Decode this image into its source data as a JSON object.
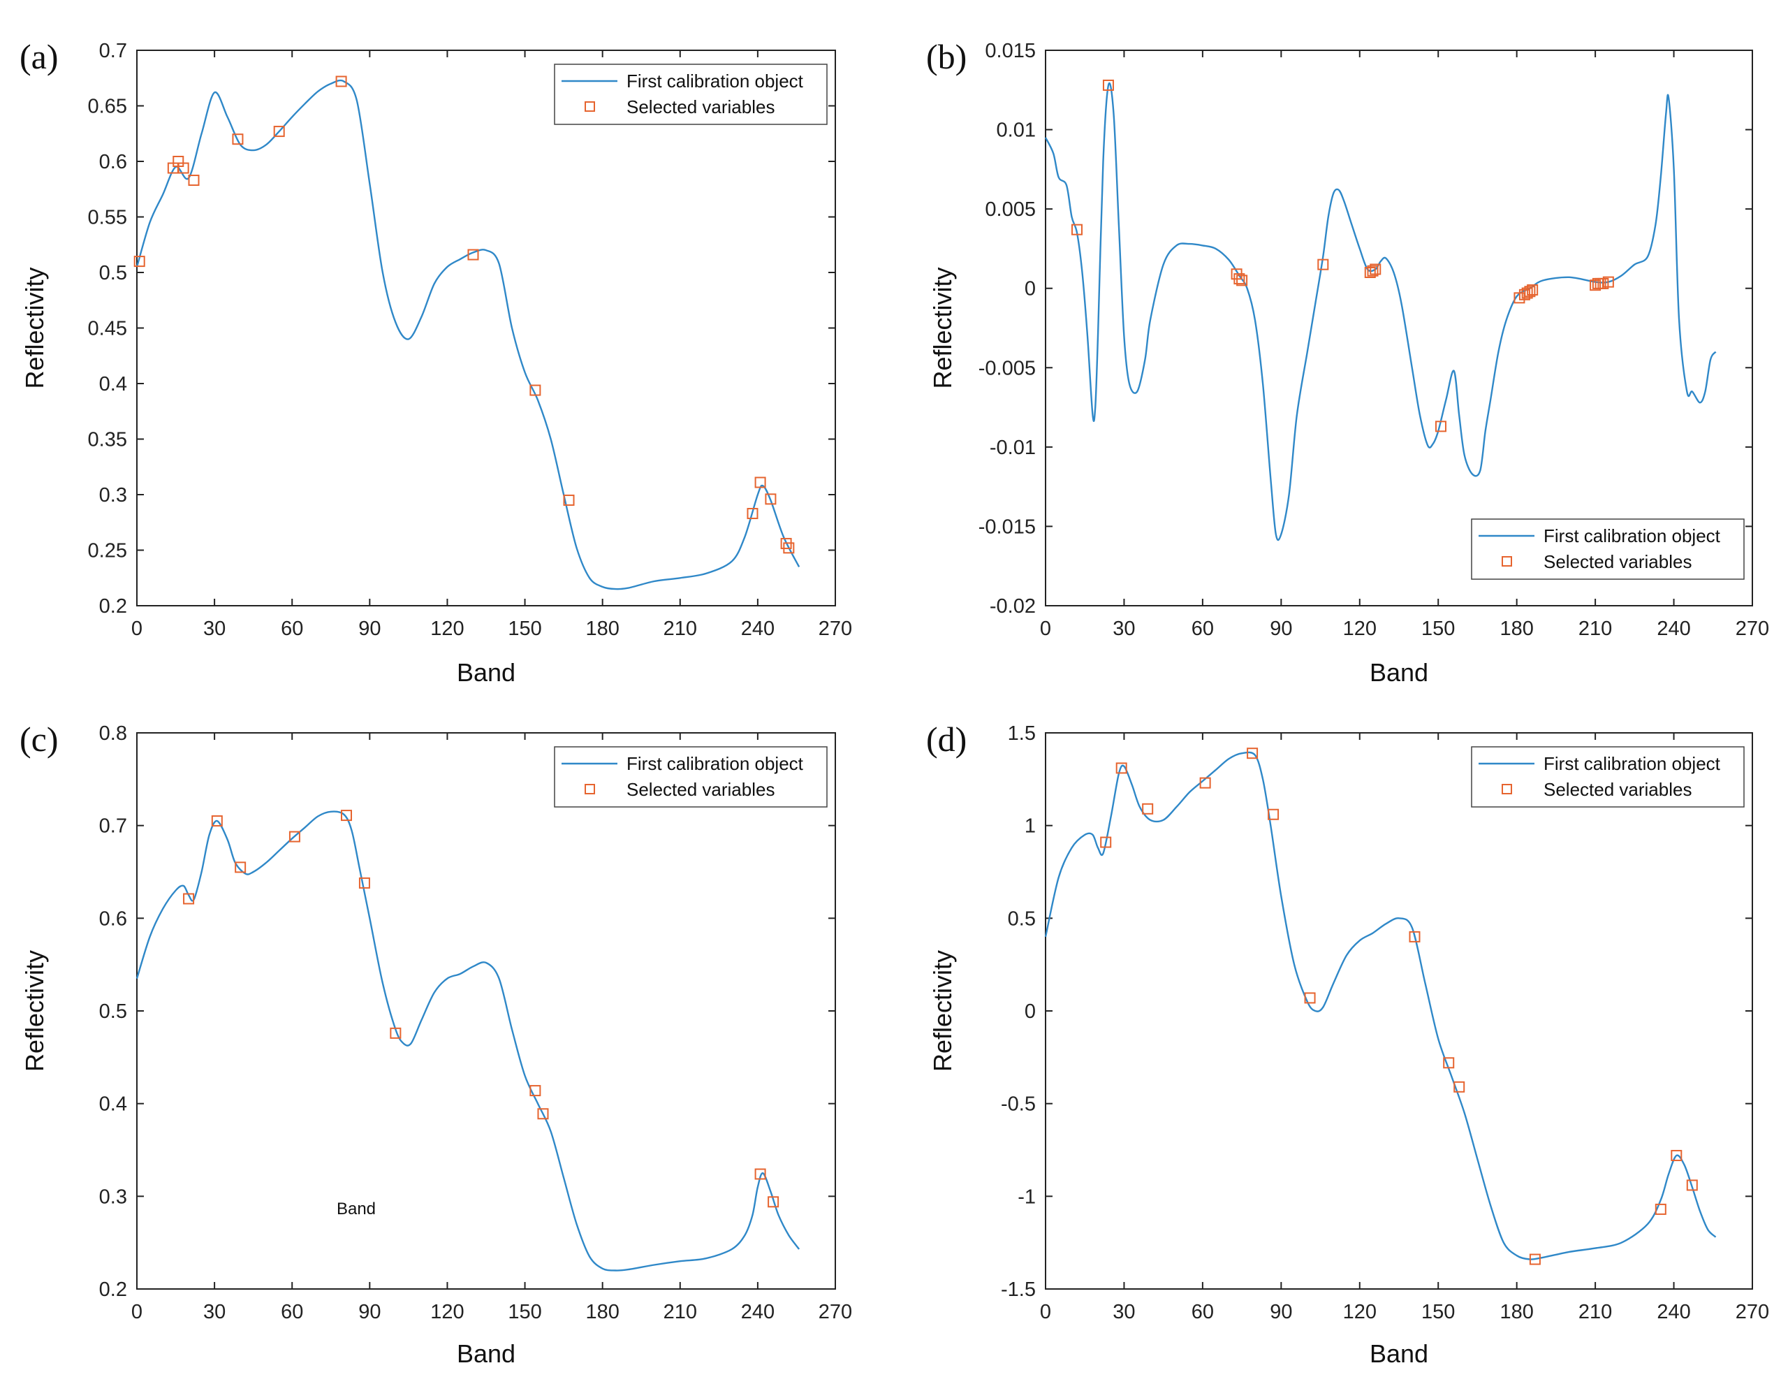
{
  "colors": {
    "line": "#2f88c8",
    "marker": "#e6642f",
    "axis": "#222222",
    "grid": "none"
  },
  "chart_data": [
    {
      "panel": "(a)",
      "type": "line",
      "xlabel": "Band",
      "ylabel": "Reflectivity",
      "xlim": [
        0,
        270
      ],
      "ylim": [
        0.2,
        0.7
      ],
      "xticks": [
        0,
        30,
        60,
        90,
        120,
        150,
        180,
        210,
        240,
        270
      ],
      "yticks": [
        0.2,
        0.25,
        0.3,
        0.35,
        0.4,
        0.45,
        0.5,
        0.55,
        0.6,
        0.65,
        0.7
      ],
      "ytick_labels": [
        "0.2",
        "0.25",
        "0.3",
        "0.35",
        "0.4",
        "0.45",
        "0.5",
        "0.55",
        "0.6",
        "0.65",
        "0.7"
      ],
      "legend": {
        "location": "top-right",
        "line_label": "First calibration object",
        "marker_label": "Selected variables"
      },
      "series": [
        {
          "name": "First calibration object",
          "kind": "line",
          "x": [
            0,
            5,
            10,
            15,
            20,
            25,
            30,
            35,
            40,
            45,
            50,
            55,
            60,
            65,
            70,
            75,
            80,
            85,
            90,
            95,
            100,
            105,
            110,
            115,
            120,
            125,
            130,
            135,
            140,
            145,
            150,
            155,
            160,
            165,
            170,
            175,
            180,
            185,
            190,
            200,
            210,
            220,
            230,
            235,
            240,
            242,
            245,
            250,
            256
          ],
          "y": [
            0.505,
            0.545,
            0.57,
            0.595,
            0.585,
            0.625,
            0.662,
            0.64,
            0.615,
            0.61,
            0.615,
            0.627,
            0.64,
            0.652,
            0.663,
            0.67,
            0.672,
            0.655,
            0.58,
            0.5,
            0.455,
            0.44,
            0.46,
            0.49,
            0.505,
            0.512,
            0.518,
            0.52,
            0.508,
            0.45,
            0.41,
            0.385,
            0.35,
            0.3,
            0.252,
            0.225,
            0.217,
            0.215,
            0.216,
            0.222,
            0.225,
            0.229,
            0.24,
            0.262,
            0.3,
            0.308,
            0.295,
            0.262,
            0.235
          ]
        },
        {
          "name": "Selected variables",
          "kind": "markers",
          "x": [
            1,
            14,
            16,
            18,
            22,
            39,
            55,
            79,
            130,
            154,
            167,
            238,
            241,
            245,
            251,
            252
          ],
          "y": [
            0.51,
            0.594,
            0.6,
            0.594,
            0.583,
            0.62,
            0.627,
            0.672,
            0.516,
            0.394,
            0.295,
            0.283,
            0.311,
            0.296,
            0.256,
            0.252
          ]
        }
      ]
    },
    {
      "panel": "(b)",
      "type": "line",
      "xlabel": "Band",
      "ylabel": "Reflectivity",
      "xlim": [
        0,
        270
      ],
      "ylim": [
        -0.02,
        0.015
      ],
      "xticks": [
        0,
        30,
        60,
        90,
        120,
        150,
        180,
        210,
        240,
        270
      ],
      "yticks": [
        -0.02,
        -0.015,
        -0.01,
        -0.005,
        0,
        0.005,
        0.01,
        0.015
      ],
      "ytick_labels": [
        "-0.02",
        "-0.015",
        "-0.01",
        "-0.005",
        "0",
        "0.005",
        "0.01",
        "0.015"
      ],
      "legend": {
        "location": "bottom-right",
        "line_label": "First calibration object",
        "marker_label": "Selected variables"
      },
      "series": [
        {
          "name": "First calibration object",
          "kind": "line",
          "x": [
            0,
            3,
            5,
            8,
            10,
            12,
            14,
            16,
            18,
            19,
            20,
            22,
            24,
            26,
            28,
            30,
            32,
            35,
            38,
            40,
            45,
            50,
            55,
            60,
            65,
            70,
            74,
            77,
            80,
            83,
            86,
            88,
            90,
            93,
            96,
            100,
            103,
            106,
            108,
            110,
            112,
            114,
            117,
            120,
            123,
            126,
            128,
            130,
            133,
            136,
            140,
            143,
            146,
            148,
            150,
            153,
            156,
            158,
            160,
            163,
            166,
            168,
            170,
            173,
            176,
            180,
            185,
            190,
            200,
            210,
            215,
            220,
            225,
            230,
            233,
            235,
            237,
            238,
            240,
            242,
            245,
            247,
            250,
            252,
            254,
            256
          ],
          "y": [
            0.0095,
            0.0085,
            0.007,
            0.0065,
            0.0045,
            0.0035,
            0.001,
            -0.003,
            -0.008,
            -0.0075,
            -0.003,
            0.008,
            0.0128,
            0.011,
            0.004,
            -0.003,
            -0.006,
            -0.0065,
            -0.0045,
            -0.002,
            0.0015,
            0.0027,
            0.0028,
            0.0027,
            0.0025,
            0.0018,
            0.0008,
            0.0,
            -0.002,
            -0.006,
            -0.012,
            -0.0155,
            -0.0155,
            -0.013,
            -0.008,
            -0.004,
            -0.001,
            0.002,
            0.0045,
            0.006,
            0.0062,
            0.0055,
            0.004,
            0.0025,
            0.0012,
            0.0012,
            0.0017,
            0.0019,
            0.001,
            -0.001,
            -0.005,
            -0.008,
            -0.0099,
            -0.0098,
            -0.009,
            -0.007,
            -0.0052,
            -0.008,
            -0.0105,
            -0.0117,
            -0.0115,
            -0.009,
            -0.007,
            -0.004,
            -0.002,
            -0.0005,
            0.0,
            0.0005,
            0.0007,
            0.0004,
            0.0004,
            0.0008,
            0.0015,
            0.002,
            0.004,
            0.007,
            0.011,
            0.012,
            0.0075,
            -0.002,
            -0.0065,
            -0.0065,
            -0.0072,
            -0.0065,
            -0.0045,
            -0.004
          ]
        },
        {
          "name": "Selected variables",
          "kind": "markers",
          "x": [
            12,
            24,
            73,
            74,
            75,
            106,
            124,
            125,
            126,
            151,
            181,
            183,
            184,
            185,
            186,
            210,
            211,
            212,
            213,
            215
          ],
          "y": [
            0.0037,
            0.0128,
            0.0009,
            0.0006,
            0.0005,
            0.0015,
            0.001,
            0.0011,
            0.0012,
            -0.0087,
            -0.0006,
            -0.0004,
            -0.0003,
            -0.0002,
            -0.0001,
            0.0002,
            0.0003,
            0.0003,
            0.0003,
            0.0004
          ]
        }
      ]
    },
    {
      "panel": "(c)",
      "type": "line",
      "xlabel": "Band",
      "ylabel": "Reflectivity",
      "annotation": "Band",
      "xlim": [
        0,
        270
      ],
      "ylim": [
        0.2,
        0.8
      ],
      "xticks": [
        0,
        30,
        60,
        90,
        120,
        150,
        180,
        210,
        240,
        270
      ],
      "yticks": [
        0.2,
        0.3,
        0.4,
        0.5,
        0.6,
        0.7,
        0.8
      ],
      "ytick_labels": [
        "0.2",
        "0.3",
        "0.4",
        "0.5",
        "0.6",
        "0.7",
        "0.8"
      ],
      "legend": {
        "location": "top-right",
        "line_label": "First calibration object",
        "marker_label": "Selected variables"
      },
      "series": [
        {
          "name": "First calibration object",
          "kind": "line",
          "x": [
            0,
            5,
            10,
            15,
            18,
            20,
            22,
            25,
            28,
            31,
            35,
            38,
            42,
            45,
            50,
            55,
            60,
            65,
            70,
            75,
            80,
            83,
            86,
            90,
            95,
            100,
            103,
            106,
            110,
            115,
            120,
            125,
            130,
            135,
            140,
            145,
            150,
            155,
            160,
            165,
            170,
            175,
            180,
            185,
            190,
            200,
            210,
            220,
            230,
            235,
            238,
            240,
            242,
            245,
            248,
            252,
            256
          ],
          "y": [
            0.535,
            0.58,
            0.61,
            0.63,
            0.635,
            0.625,
            0.62,
            0.65,
            0.69,
            0.705,
            0.685,
            0.66,
            0.648,
            0.65,
            0.66,
            0.673,
            0.686,
            0.698,
            0.71,
            0.715,
            0.712,
            0.695,
            0.655,
            0.6,
            0.53,
            0.48,
            0.465,
            0.465,
            0.49,
            0.52,
            0.535,
            0.54,
            0.548,
            0.552,
            0.535,
            0.48,
            0.43,
            0.4,
            0.37,
            0.32,
            0.27,
            0.235,
            0.222,
            0.22,
            0.221,
            0.226,
            0.23,
            0.233,
            0.243,
            0.258,
            0.28,
            0.31,
            0.325,
            0.305,
            0.28,
            0.258,
            0.243
          ]
        },
        {
          "name": "Selected variables",
          "kind": "markers",
          "x": [
            20,
            31,
            40,
            61,
            81,
            88,
            100,
            154,
            157,
            241,
            246
          ],
          "y": [
            0.621,
            0.705,
            0.655,
            0.688,
            0.711,
            0.638,
            0.476,
            0.414,
            0.389,
            0.324,
            0.294
          ]
        }
      ]
    },
    {
      "panel": "(d)",
      "type": "line",
      "xlabel": "Band",
      "ylabel": "Reflectivity",
      "xlim": [
        0,
        270
      ],
      "ylim": [
        -1.5,
        1.5
      ],
      "xticks": [
        0,
        30,
        60,
        90,
        120,
        150,
        180,
        210,
        240,
        270
      ],
      "yticks": [
        -1.5,
        -1,
        -0.5,
        0,
        0.5,
        1,
        1.5
      ],
      "ytick_labels": [
        "-1.5",
        "-1",
        "-0.5",
        "0",
        "0.5",
        "1",
        "1.5"
      ],
      "legend": {
        "location": "top-right",
        "line_label": "First calibration object",
        "marker_label": "Selected variables"
      },
      "series": [
        {
          "name": "First calibration object",
          "kind": "line",
          "x": [
            0,
            5,
            10,
            15,
            18,
            20,
            22,
            25,
            28,
            30,
            33,
            36,
            40,
            45,
            50,
            55,
            60,
            65,
            70,
            75,
            80,
            83,
            86,
            90,
            95,
            100,
            103,
            106,
            110,
            115,
            120,
            125,
            130,
            135,
            140,
            145,
            150,
            155,
            160,
            165,
            170,
            175,
            180,
            185,
            190,
            200,
            210,
            220,
            230,
            235,
            238,
            241,
            244,
            247,
            250,
            253,
            256
          ],
          "y": [
            0.4,
            0.72,
            0.88,
            0.95,
            0.95,
            0.88,
            0.85,
            1.05,
            1.28,
            1.32,
            1.22,
            1.1,
            1.03,
            1.03,
            1.1,
            1.18,
            1.24,
            1.3,
            1.36,
            1.39,
            1.38,
            1.25,
            1.0,
            0.62,
            0.25,
            0.05,
            0.0,
            0.02,
            0.15,
            0.3,
            0.38,
            0.42,
            0.47,
            0.5,
            0.45,
            0.15,
            -0.15,
            -0.35,
            -0.55,
            -0.8,
            -1.05,
            -1.25,
            -1.32,
            -1.34,
            -1.33,
            -1.3,
            -1.28,
            -1.25,
            -1.15,
            -1.02,
            -0.88,
            -0.78,
            -0.83,
            -0.95,
            -1.08,
            -1.18,
            -1.22
          ]
        },
        {
          "name": "Selected variables",
          "kind": "markers",
          "x": [
            23,
            29,
            39,
            61,
            79,
            87,
            101,
            141,
            154,
            158,
            187,
            235,
            241,
            247
          ],
          "y": [
            0.91,
            1.31,
            1.09,
            1.23,
            1.39,
            1.06,
            0.07,
            0.4,
            -0.28,
            -0.41,
            -1.34,
            -1.07,
            -0.78,
            -0.94
          ]
        }
      ]
    }
  ]
}
